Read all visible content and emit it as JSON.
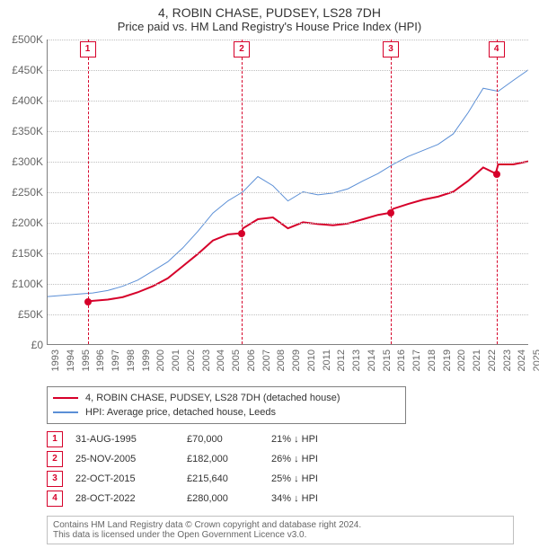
{
  "title_line1": "4, ROBIN CHASE, PUDSEY, LS28 7DH",
  "title_line2": "Price paid vs. HM Land Registry's House Price Index (HPI)",
  "chart": {
    "type": "line",
    "x_start_year": 1993,
    "x_end_year": 2025,
    "y_min": 0,
    "y_max": 500000,
    "y_tick_step": 50000,
    "y_tick_labels": [
      "£0",
      "£50K",
      "£100K",
      "£150K",
      "£200K",
      "£250K",
      "£300K",
      "£350K",
      "£400K",
      "£450K",
      "£500K"
    ],
    "x_tick_years": [
      1993,
      1994,
      1995,
      1996,
      1997,
      1998,
      1999,
      2000,
      2001,
      2002,
      2003,
      2004,
      2005,
      2006,
      2007,
      2008,
      2009,
      2010,
      2011,
      2012,
      2013,
      2014,
      2015,
      2016,
      2017,
      2018,
      2019,
      2020,
      2021,
      2022,
      2023,
      2024,
      2025
    ],
    "background_color": "#ffffff",
    "grid_color": "#bfbfbf",
    "axis_color": "#808080",
    "series": [
      {
        "name": "4, ROBIN CHASE, PUDSEY, LS28 7DH (detached house)",
        "color": "#d6002a",
        "width": 2,
        "points": [
          [
            1995.66,
            70000
          ],
          [
            1996,
            71000
          ],
          [
            1997,
            73000
          ],
          [
            1998,
            77000
          ],
          [
            1999,
            85000
          ],
          [
            2000,
            95000
          ],
          [
            2001,
            108000
          ],
          [
            2002,
            128000
          ],
          [
            2003,
            148000
          ],
          [
            2004,
            170000
          ],
          [
            2005,
            180000
          ],
          [
            2005.9,
            182000
          ],
          [
            2006,
            190000
          ],
          [
            2007,
            205000
          ],
          [
            2008,
            208000
          ],
          [
            2009,
            190000
          ],
          [
            2010,
            200000
          ],
          [
            2011,
            197000
          ],
          [
            2012,
            195000
          ],
          [
            2013,
            198000
          ],
          [
            2014,
            205000
          ],
          [
            2015,
            212000
          ],
          [
            2015.81,
            215640
          ],
          [
            2016,
            222000
          ],
          [
            2017,
            230000
          ],
          [
            2018,
            237000
          ],
          [
            2019,
            242000
          ],
          [
            2020,
            250000
          ],
          [
            2021,
            268000
          ],
          [
            2022,
            290000
          ],
          [
            2022.83,
            280000
          ],
          [
            2023,
            295000
          ],
          [
            2024,
            295000
          ],
          [
            2025,
            300000
          ]
        ]
      },
      {
        "name": "HPI: Average price, detached house, Leeds",
        "color": "#5b8fd6",
        "width": 1,
        "points": [
          [
            1993,
            78000
          ],
          [
            1994,
            80000
          ],
          [
            1995,
            82000
          ],
          [
            1996,
            84000
          ],
          [
            1997,
            88000
          ],
          [
            1998,
            95000
          ],
          [
            1999,
            105000
          ],
          [
            2000,
            120000
          ],
          [
            2001,
            135000
          ],
          [
            2002,
            158000
          ],
          [
            2003,
            185000
          ],
          [
            2004,
            215000
          ],
          [
            2005,
            235000
          ],
          [
            2006,
            250000
          ],
          [
            2007,
            275000
          ],
          [
            2008,
            260000
          ],
          [
            2009,
            235000
          ],
          [
            2010,
            250000
          ],
          [
            2011,
            245000
          ],
          [
            2012,
            248000
          ],
          [
            2013,
            255000
          ],
          [
            2014,
            268000
          ],
          [
            2015,
            280000
          ],
          [
            2016,
            295000
          ],
          [
            2017,
            308000
          ],
          [
            2018,
            318000
          ],
          [
            2019,
            328000
          ],
          [
            2020,
            345000
          ],
          [
            2021,
            380000
          ],
          [
            2022,
            420000
          ],
          [
            2023,
            415000
          ],
          [
            2024,
            433000
          ],
          [
            2025,
            450000
          ]
        ]
      }
    ],
    "event_lines": [
      {
        "label": "1",
        "year": 1995.66,
        "price": 70000,
        "color": "#d6002a"
      },
      {
        "label": "2",
        "year": 2005.9,
        "price": 182000,
        "color": "#d6002a"
      },
      {
        "label": "3",
        "year": 2015.81,
        "price": 215640,
        "color": "#d6002a"
      },
      {
        "label": "4",
        "year": 2022.83,
        "price": 280000,
        "color": "#d6002a"
      }
    ]
  },
  "legend": [
    {
      "swatch": "#d6002a",
      "label": "4, ROBIN CHASE, PUDSEY, LS28 7DH (detached house)"
    },
    {
      "swatch": "#5b8fd6",
      "label": "HPI: Average price, detached house, Leeds"
    }
  ],
  "events_table": [
    {
      "n": "1",
      "date": "31-AUG-1995",
      "price": "£70,000",
      "delta": "21% ↓ HPI"
    },
    {
      "n": "2",
      "date": "25-NOV-2005",
      "price": "£182,000",
      "delta": "26% ↓ HPI"
    },
    {
      "n": "3",
      "date": "22-OCT-2015",
      "price": "£215,640",
      "delta": "25% ↓ HPI"
    },
    {
      "n": "4",
      "date": "28-OCT-2022",
      "price": "£280,000",
      "delta": "34% ↓ HPI"
    }
  ],
  "footer_line1": "Contains HM Land Registry data © Crown copyright and database right 2024.",
  "footer_line2": "This data is licensed under the Open Government Licence v3.0.",
  "event_box_border": "#d6002a",
  "event_box_text": "#d6002a"
}
